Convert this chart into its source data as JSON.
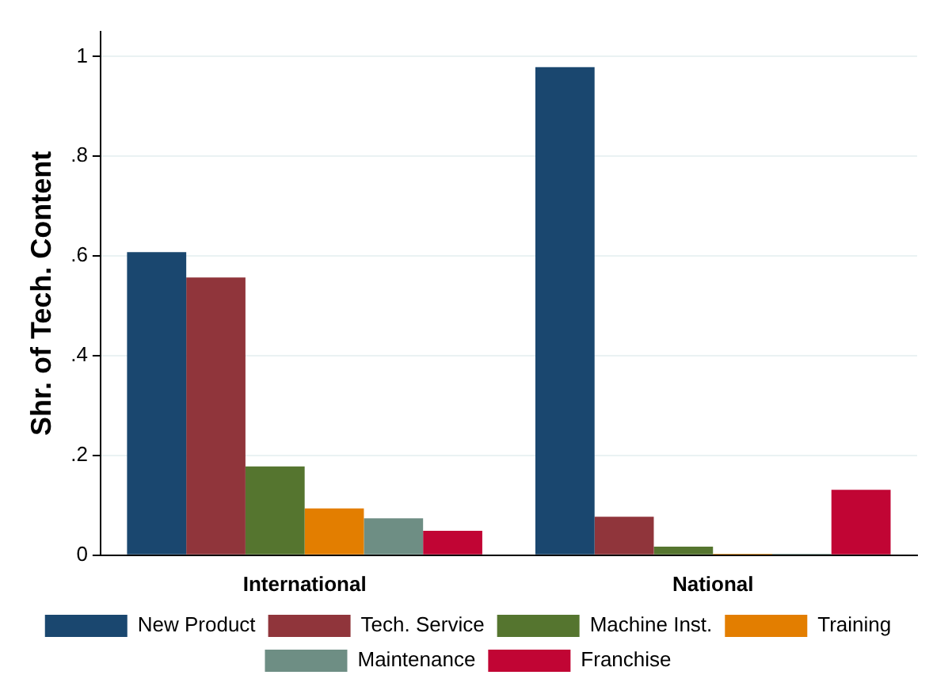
{
  "chart_data": {
    "type": "bar",
    "ylabel": "Shr. of Tech. Content",
    "categories": [
      "International",
      "National"
    ],
    "series": [
      {
        "name": "New Product",
        "color": "#1a476f",
        "values": [
          0.608,
          0.979
        ]
      },
      {
        "name": "Tech. Service",
        "color": "#90353b",
        "values": [
          0.557,
          0.077
        ]
      },
      {
        "name": "Machine Inst.",
        "color": "#55752f",
        "values": [
          0.178,
          0.017
        ]
      },
      {
        "name": "Training",
        "color": "#e37e00",
        "values": [
          0.094,
          0.003
        ]
      },
      {
        "name": "Maintenance",
        "color": "#6e8e84",
        "values": [
          0.074,
          0.003
        ]
      },
      {
        "name": "Franchise",
        "color": "#c10534",
        "values": [
          0.049,
          0.131
        ]
      }
    ],
    "ylim": [
      0,
      1.05
    ],
    "yticks": [
      0,
      {
        "value": 0.2,
        "label": ".2"
      },
      {
        "value": 0.4,
        "label": ".4"
      },
      {
        "value": 0.6,
        "label": ".6"
      },
      {
        "value": 0.8,
        "label": ".8"
      },
      1
    ],
    "grid": "y",
    "legend": "bottom"
  }
}
